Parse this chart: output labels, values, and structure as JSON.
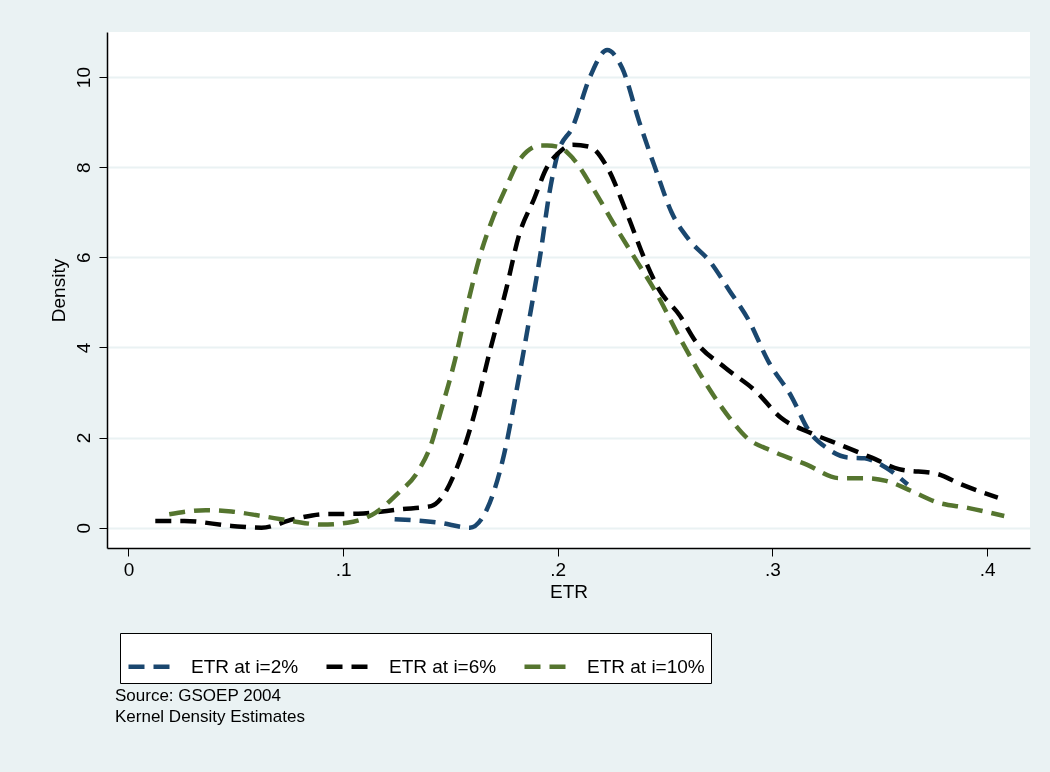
{
  "chart_data": {
    "type": "line",
    "xlabel": "ETR",
    "ylabel": "Density",
    "xlim": [
      -0.01,
      0.42
    ],
    "xticks": [
      {
        "value": 0,
        "label": "0"
      },
      {
        "value": 0.1,
        "label": ".1"
      },
      {
        "value": 0.2,
        "label": ".2"
      },
      {
        "value": 0.3,
        "label": ".3"
      },
      {
        "value": 0.4,
        "label": ".4"
      }
    ],
    "ylim": [
      -0.45,
      11
    ],
    "yticks": [
      0,
      2,
      4,
      6,
      8,
      10
    ],
    "grid": "y",
    "legend": "bottom",
    "line_style": "dashed",
    "marker": "none",
    "annotations": [
      "Source: GSOEP 2004",
      "Kernel Density Estimates"
    ],
    "series": [
      {
        "name": "ETR at i=2%",
        "color": "#1a476f",
        "x": [
          0.124,
          0.145,
          0.159,
          0.167,
          0.175,
          0.181,
          0.187,
          0.192,
          0.196,
          0.2,
          0.207,
          0.215,
          0.223,
          0.23,
          0.238,
          0.246,
          0.253,
          0.261,
          0.271,
          0.28,
          0.289,
          0.298,
          0.309,
          0.317,
          0.325,
          0.335,
          0.343,
          0.353,
          0.363
        ],
        "values": [
          0.19,
          0.11,
          0,
          0.41,
          1.63,
          3.1,
          4.7,
          6.1,
          7.4,
          8.3,
          8.9,
          10,
          10.6,
          10.2,
          9,
          7.9,
          7,
          6.4,
          5.9,
          5.26,
          4.6,
          3.7,
          2.9,
          2.15,
          1.78,
          1.56,
          1.54,
          1.33,
          0.96
        ]
      },
      {
        "name": "ETR at i=6%",
        "color": "#000000",
        "x": [
          0.0125,
          0.026,
          0.048,
          0.062,
          0.077,
          0.091,
          0.107,
          0.127,
          0.141,
          0.147,
          0.153,
          0.161,
          0.168,
          0.176,
          0.182,
          0.189,
          0.195,
          0.2,
          0.207,
          0.215,
          0.223,
          0.232,
          0.241,
          0.247,
          0.257,
          0.264,
          0.278,
          0.292,
          0.304,
          0.318,
          0.331,
          0.346,
          0.359,
          0.377,
          0.388,
          0.405
        ],
        "values": [
          0.15,
          0.15,
          0.04,
          0,
          0.19,
          0.3,
          0.31,
          0.41,
          0.48,
          0.74,
          1.33,
          2.5,
          3.85,
          5.3,
          6.5,
          7.3,
          8,
          8.3,
          8.5,
          8.45,
          8,
          7,
          5.9,
          5.3,
          4.7,
          4.15,
          3.55,
          3.04,
          2.44,
          2.1,
          1.85,
          1.56,
          1.3,
          1.19,
          0.96,
          0.67
        ]
      },
      {
        "name": "ETR at i=10%",
        "color": "#55752f",
        "x": [
          0.019,
          0.036,
          0.048,
          0.062,
          0.076,
          0.09,
          0.102,
          0.115,
          0.125,
          0.135,
          0.141,
          0.145,
          0.152,
          0.158,
          0.164,
          0.17,
          0.176,
          0.182,
          0.192,
          0.195,
          0.201,
          0.207,
          0.216,
          0.227,
          0.237,
          0.246,
          0.257,
          0.269,
          0.28,
          0.288,
          0.3,
          0.316,
          0.331,
          0.343,
          0.353,
          0.365,
          0.377,
          0.391,
          0.408
        ],
        "values": [
          0.3,
          0.39,
          0.36,
          0.26,
          0.15,
          0.07,
          0.11,
          0.33,
          0.74,
          1.26,
          1.85,
          2.5,
          3.7,
          4.96,
          6.07,
          6.9,
          7.56,
          8.15,
          8.48,
          8.48,
          8.44,
          8.2,
          7.56,
          6.67,
          5.9,
          5.2,
          4.2,
          3.2,
          2.44,
          2,
          1.7,
          1.4,
          1.1,
          1.1,
          1.04,
          0.81,
          0.56,
          0.44,
          0.26
        ]
      }
    ]
  }
}
